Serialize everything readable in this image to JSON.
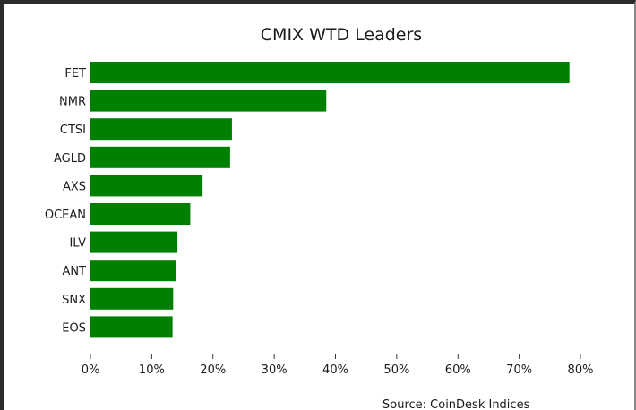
{
  "chart_data": {
    "type": "bar",
    "orientation": "horizontal",
    "title": "CMIX WTD Leaders",
    "xlabel": "",
    "ylabel": "",
    "categories": [
      "FET",
      "NMR",
      "CTSI",
      "AGLD",
      "AXS",
      "OCEAN",
      "ILV",
      "ANT",
      "SNX",
      "EOS"
    ],
    "values": [
      78.2,
      38.5,
      23.1,
      22.8,
      18.3,
      16.3,
      14.2,
      13.9,
      13.5,
      13.4
    ],
    "value_unit": "%",
    "xlim": [
      0,
      80
    ],
    "xticks": [
      0,
      10,
      20,
      30,
      40,
      50,
      60,
      70,
      80
    ],
    "xtick_labels": [
      "0%",
      "10%",
      "20%",
      "30%",
      "40%",
      "50%",
      "60%",
      "70%",
      "80%"
    ],
    "bar_color": "#008000",
    "grid": false,
    "legend": "none",
    "source_note": "Source: CoinDesk Indices"
  }
}
